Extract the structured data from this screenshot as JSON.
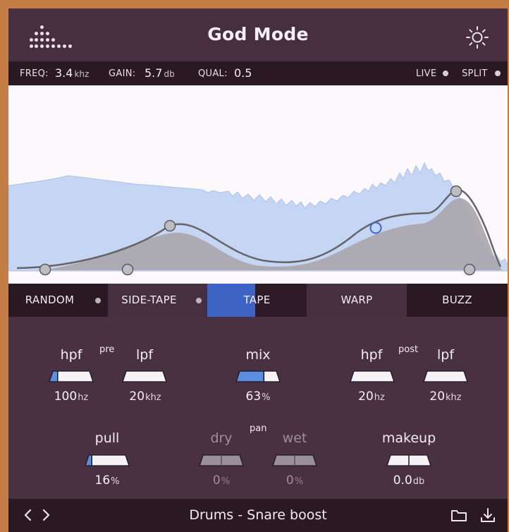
{
  "header": {
    "title": "God Mode",
    "logo_icon": "dot-matrix-logo-icon",
    "settings_icon": "sun-gear-icon"
  },
  "info": {
    "freq_label": "FREQ:",
    "freq_value": "3.4",
    "freq_unit": "khz",
    "gain_label": "GAIN:",
    "gain_value": "5.7",
    "gain_unit": "db",
    "qual_label": "QUAL:",
    "qual_value": "0.5",
    "live_label": "LIVE",
    "split_label": "SPLIT"
  },
  "modes": [
    {
      "label": "RANDOM"
    },
    {
      "label": "SIDE-TAPE"
    },
    {
      "label": "TAPE",
      "selected": true
    },
    {
      "label": "WARP"
    },
    {
      "label": "BUZZ"
    }
  ],
  "pre": {
    "section_label": "pre",
    "hpf_label": "hpf",
    "hpf_value": "100",
    "hpf_unit": "hz",
    "hpf_level": 0.2,
    "lpf_label": "lpf",
    "lpf_value": "20",
    "lpf_unit": "khz",
    "lpf_level": 0.0
  },
  "mix": {
    "label": "mix",
    "value": "63",
    "unit": "%",
    "level": 0.63
  },
  "post": {
    "section_label": "post",
    "hpf_label": "hpf",
    "hpf_value": "20",
    "hpf_unit": "hz",
    "hpf_level": 0.0,
    "lpf_label": "lpf",
    "lpf_value": "20",
    "lpf_unit": "khz",
    "lpf_level": 0.0
  },
  "pull": {
    "label": "pull",
    "value": "16",
    "unit": "%",
    "level": 0.16
  },
  "pan": {
    "section_label": "pan",
    "dry_label": "dry",
    "dry_value": "0",
    "dry_unit": "%",
    "wet_label": "wet",
    "wet_value": "0",
    "wet_unit": "%"
  },
  "makeup": {
    "label": "makeup",
    "value": "0.0",
    "unit": "db"
  },
  "footer": {
    "prev_icon": "chevron-left-icon",
    "next_icon": "chevron-right-icon",
    "preset_name": "Drums - Snare boost",
    "folder_icon": "folder-icon",
    "download_icon": "download-icon"
  },
  "colors": {
    "accent": "#3d63c4",
    "panel": "#4a3141",
    "dark_bar": "#2a1823",
    "graph_bg": "#fcf8fb",
    "spectrum_fill": "#c5d6f5",
    "eq_fill": "#a9a6ad",
    "slider_fill": "#5b8de0"
  }
}
